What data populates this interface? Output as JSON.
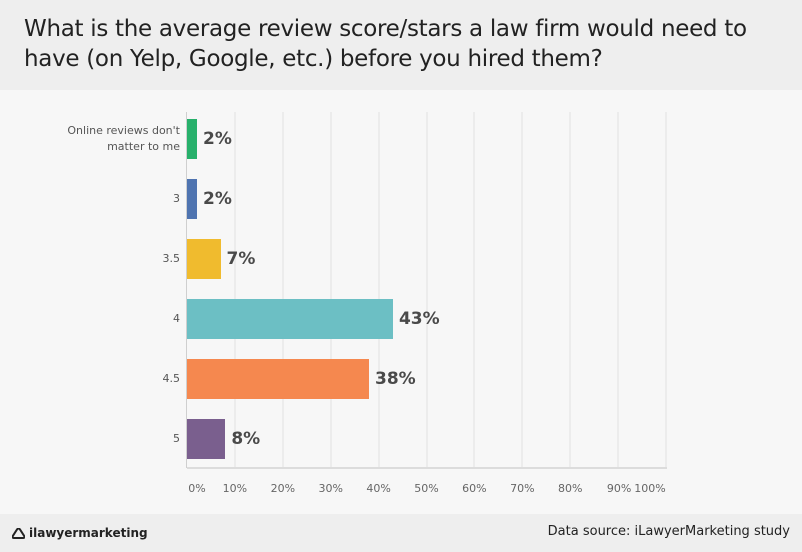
{
  "header": {
    "title": "What is the average review score/stars a law firm would need to have (on Yelp, Google, etc.) before you hired them?"
  },
  "chart_data": {
    "type": "bar",
    "orientation": "horizontal",
    "title": "What is the average review score/stars a law firm would need to have (on Yelp, Google, etc.) before you hired them?",
    "categories": [
      "Online reviews don't matter to me",
      "3",
      "3.5",
      "4",
      "4.5",
      "5"
    ],
    "values": [
      2,
      2,
      7,
      43,
      38,
      8
    ],
    "value_labels": [
      "2%",
      "2%",
      "7%",
      "43%",
      "38%",
      "8%"
    ],
    "colors": [
      "#27b06b",
      "#4f74b0",
      "#f0bb2e",
      "#6cbfc4",
      "#f5884f",
      "#7a5f8e"
    ],
    "xlabel": "",
    "ylabel": "",
    "xlim": [
      0,
      100
    ],
    "x_ticks": [
      "0%",
      "10%",
      "20%",
      "30%",
      "40%",
      "50%",
      "60%",
      "70%",
      "80%",
      "90%",
      "100%"
    ],
    "grid": true,
    "legend": null
  },
  "footer": {
    "logo_text": "ilawyermarketing",
    "source": "Data source: iLawyerMarketing study"
  }
}
